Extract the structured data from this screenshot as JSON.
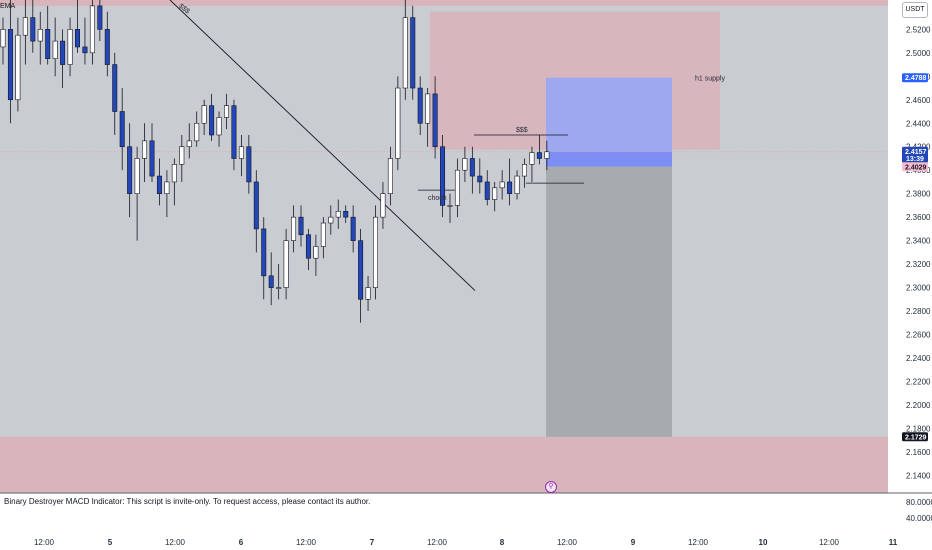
{
  "header": {
    "ema_label": "EMA",
    "currency_button": "USDT"
  },
  "colors": {
    "background": "#c9ccd0",
    "supply_zone": "#d8b4bb",
    "target_zone": "#9da8f0",
    "stop_zone": "#a8abad",
    "candle_down": "#2346b8",
    "candle_up": "#ffffff",
    "candle_outline": "#131722"
  },
  "indicator": {
    "message": "Binary Destroyer MACD Indicator: This script is invite-only. To request access, please contact its author.",
    "scale": [
      "80.0000",
      "40.0000"
    ]
  },
  "annotations": {
    "h1_supply": "h1 supply",
    "choch": "choch",
    "sss_top": "$$$",
    "sss_trendline": "$$$"
  },
  "price_tags": [
    {
      "price": 2.4788,
      "label": "2.4788",
      "bg": "#2962ff",
      "fg": "#ffffff"
    },
    {
      "price": 2.4157,
      "label": "2.4157",
      "sub": "13:39",
      "bg": "#2346b8",
      "fg": "#ffffff"
    },
    {
      "price": 2.4029,
      "label": "2.4029",
      "bg": "#f8bbd0",
      "fg": "#131722"
    },
    {
      "price": 2.1729,
      "label": "2.1729",
      "bg": "#131722",
      "fg": "#ffffff"
    }
  ],
  "chart_data": {
    "type": "candlestick",
    "ylim": [
      2.125,
      2.545
    ],
    "y_ticks": [
      "2.5200",
      "2.5000",
      "2.4800",
      "2.4600",
      "2.4400",
      "2.4200",
      "2.4000",
      "2.3800",
      "2.3600",
      "2.3400",
      "2.3200",
      "2.3000",
      "2.2800",
      "2.2600",
      "2.2400",
      "2.2200",
      "2.2000",
      "2.1800",
      "2.1600",
      "2.1400"
    ],
    "x_ticks": [
      "12:00",
      "5",
      "12:00",
      "6",
      "12:00",
      "7",
      "12:00",
      "8",
      "12:00",
      "9",
      "12:00",
      "10",
      "12:00",
      "11"
    ],
    "candles": [
      {
        "o": 2.505,
        "h": 2.53,
        "l": 2.49,
        "c": 2.52
      },
      {
        "o": 2.52,
        "h": 2.545,
        "l": 2.44,
        "c": 2.46
      },
      {
        "o": 2.46,
        "h": 2.53,
        "l": 2.45,
        "c": 2.515
      },
      {
        "o": 2.515,
        "h": 2.545,
        "l": 2.49,
        "c": 2.53
      },
      {
        "o": 2.53,
        "h": 2.545,
        "l": 2.5,
        "c": 2.51
      },
      {
        "o": 2.51,
        "h": 2.535,
        "l": 2.49,
        "c": 2.52
      },
      {
        "o": 2.52,
        "h": 2.54,
        "l": 2.49,
        "c": 2.495
      },
      {
        "o": 2.495,
        "h": 2.53,
        "l": 2.48,
        "c": 2.51
      },
      {
        "o": 2.51,
        "h": 2.52,
        "l": 2.47,
        "c": 2.49
      },
      {
        "o": 2.49,
        "h": 2.53,
        "l": 2.48,
        "c": 2.52
      },
      {
        "o": 2.52,
        "h": 2.545,
        "l": 2.5,
        "c": 2.505
      },
      {
        "o": 2.505,
        "h": 2.53,
        "l": 2.49,
        "c": 2.5
      },
      {
        "o": 2.5,
        "h": 2.545,
        "l": 2.49,
        "c": 2.54
      },
      {
        "o": 2.54,
        "h": 2.545,
        "l": 2.51,
        "c": 2.52
      },
      {
        "o": 2.52,
        "h": 2.535,
        "l": 2.48,
        "c": 2.49
      },
      {
        "o": 2.49,
        "h": 2.5,
        "l": 2.43,
        "c": 2.45
      },
      {
        "o": 2.45,
        "h": 2.47,
        "l": 2.4,
        "c": 2.42
      },
      {
        "o": 2.42,
        "h": 2.44,
        "l": 2.36,
        "c": 2.38
      },
      {
        "o": 2.38,
        "h": 2.42,
        "l": 2.34,
        "c": 2.41
      },
      {
        "o": 2.41,
        "h": 2.44,
        "l": 2.39,
        "c": 2.425
      },
      {
        "o": 2.425,
        "h": 2.44,
        "l": 2.39,
        "c": 2.395
      },
      {
        "o": 2.395,
        "h": 2.41,
        "l": 2.37,
        "c": 2.38
      },
      {
        "o": 2.38,
        "h": 2.4,
        "l": 2.36,
        "c": 2.39
      },
      {
        "o": 2.39,
        "h": 2.41,
        "l": 2.37,
        "c": 2.405
      },
      {
        "o": 2.405,
        "h": 2.43,
        "l": 2.39,
        "c": 2.42
      },
      {
        "o": 2.42,
        "h": 2.44,
        "l": 2.41,
        "c": 2.425
      },
      {
        "o": 2.425,
        "h": 2.45,
        "l": 2.42,
        "c": 2.44
      },
      {
        "o": 2.44,
        "h": 2.46,
        "l": 2.43,
        "c": 2.455
      },
      {
        "o": 2.455,
        "h": 2.465,
        "l": 2.425,
        "c": 2.43
      },
      {
        "o": 2.43,
        "h": 2.45,
        "l": 2.42,
        "c": 2.445
      },
      {
        "o": 2.445,
        "h": 2.465,
        "l": 2.435,
        "c": 2.455
      },
      {
        "o": 2.455,
        "h": 2.46,
        "l": 2.4,
        "c": 2.41
      },
      {
        "o": 2.41,
        "h": 2.43,
        "l": 2.395,
        "c": 2.42
      },
      {
        "o": 2.42,
        "h": 2.43,
        "l": 2.38,
        "c": 2.39
      },
      {
        "o": 2.39,
        "h": 2.4,
        "l": 2.33,
        "c": 2.35
      },
      {
        "o": 2.35,
        "h": 2.36,
        "l": 2.29,
        "c": 2.31
      },
      {
        "o": 2.31,
        "h": 2.33,
        "l": 2.285,
        "c": 2.3
      },
      {
        "o": 2.3,
        "h": 2.32,
        "l": 2.29,
        "c": 2.3
      },
      {
        "o": 2.3,
        "h": 2.35,
        "l": 2.29,
        "c": 2.34
      },
      {
        "o": 2.34,
        "h": 2.37,
        "l": 2.33,
        "c": 2.36
      },
      {
        "o": 2.36,
        "h": 2.37,
        "l": 2.335,
        "c": 2.345
      },
      {
        "o": 2.345,
        "h": 2.35,
        "l": 2.315,
        "c": 2.325
      },
      {
        "o": 2.325,
        "h": 2.345,
        "l": 2.31,
        "c": 2.335
      },
      {
        "o": 2.335,
        "h": 2.36,
        "l": 2.325,
        "c": 2.355
      },
      {
        "o": 2.355,
        "h": 2.37,
        "l": 2.345,
        "c": 2.36
      },
      {
        "o": 2.36,
        "h": 2.375,
        "l": 2.35,
        "c": 2.365
      },
      {
        "o": 2.365,
        "h": 2.37,
        "l": 2.355,
        "c": 2.36
      },
      {
        "o": 2.36,
        "h": 2.37,
        "l": 2.33,
        "c": 2.34
      },
      {
        "o": 2.34,
        "h": 2.35,
        "l": 2.27,
        "c": 2.29
      },
      {
        "o": 2.29,
        "h": 2.31,
        "l": 2.28,
        "c": 2.3
      },
      {
        "o": 2.3,
        "h": 2.37,
        "l": 2.29,
        "c": 2.36
      },
      {
        "o": 2.36,
        "h": 2.39,
        "l": 2.35,
        "c": 2.38
      },
      {
        "o": 2.38,
        "h": 2.42,
        "l": 2.37,
        "c": 2.41
      },
      {
        "o": 2.41,
        "h": 2.48,
        "l": 2.4,
        "c": 2.47
      },
      {
        "o": 2.47,
        "h": 2.545,
        "l": 2.46,
        "c": 2.53
      },
      {
        "o": 2.53,
        "h": 2.54,
        "l": 2.46,
        "c": 2.47
      },
      {
        "o": 2.47,
        "h": 2.48,
        "l": 2.43,
        "c": 2.44
      },
      {
        "o": 2.44,
        "h": 2.47,
        "l": 2.42,
        "c": 2.465
      },
      {
        "o": 2.465,
        "h": 2.48,
        "l": 2.41,
        "c": 2.42
      },
      {
        "o": 2.42,
        "h": 2.43,
        "l": 2.36,
        "c": 2.37
      },
      {
        "o": 2.37,
        "h": 2.38,
        "l": 2.355,
        "c": 2.37
      },
      {
        "o": 2.37,
        "h": 2.41,
        "l": 2.36,
        "c": 2.4
      },
      {
        "o": 2.4,
        "h": 2.42,
        "l": 2.39,
        "c": 2.41
      },
      {
        "o": 2.41,
        "h": 2.42,
        "l": 2.38,
        "c": 2.395
      },
      {
        "o": 2.395,
        "h": 2.41,
        "l": 2.38,
        "c": 2.39
      },
      {
        "o": 2.39,
        "h": 2.4,
        "l": 2.37,
        "c": 2.375
      },
      {
        "o": 2.375,
        "h": 2.39,
        "l": 2.365,
        "c": 2.385
      },
      {
        "o": 2.385,
        "h": 2.4,
        "l": 2.375,
        "c": 2.39
      },
      {
        "o": 2.39,
        "h": 2.41,
        "l": 2.37,
        "c": 2.38
      },
      {
        "o": 2.38,
        "h": 2.4,
        "l": 2.375,
        "c": 2.395
      },
      {
        "o": 2.395,
        "h": 2.41,
        "l": 2.385,
        "c": 2.405
      },
      {
        "o": 2.405,
        "h": 2.42,
        "l": 2.39,
        "c": 2.415
      },
      {
        "o": 2.415,
        "h": 2.43,
        "l": 2.405,
        "c": 2.41
      },
      {
        "o": 2.41,
        "h": 2.425,
        "l": 2.4,
        "c": 2.4157
      }
    ]
  }
}
